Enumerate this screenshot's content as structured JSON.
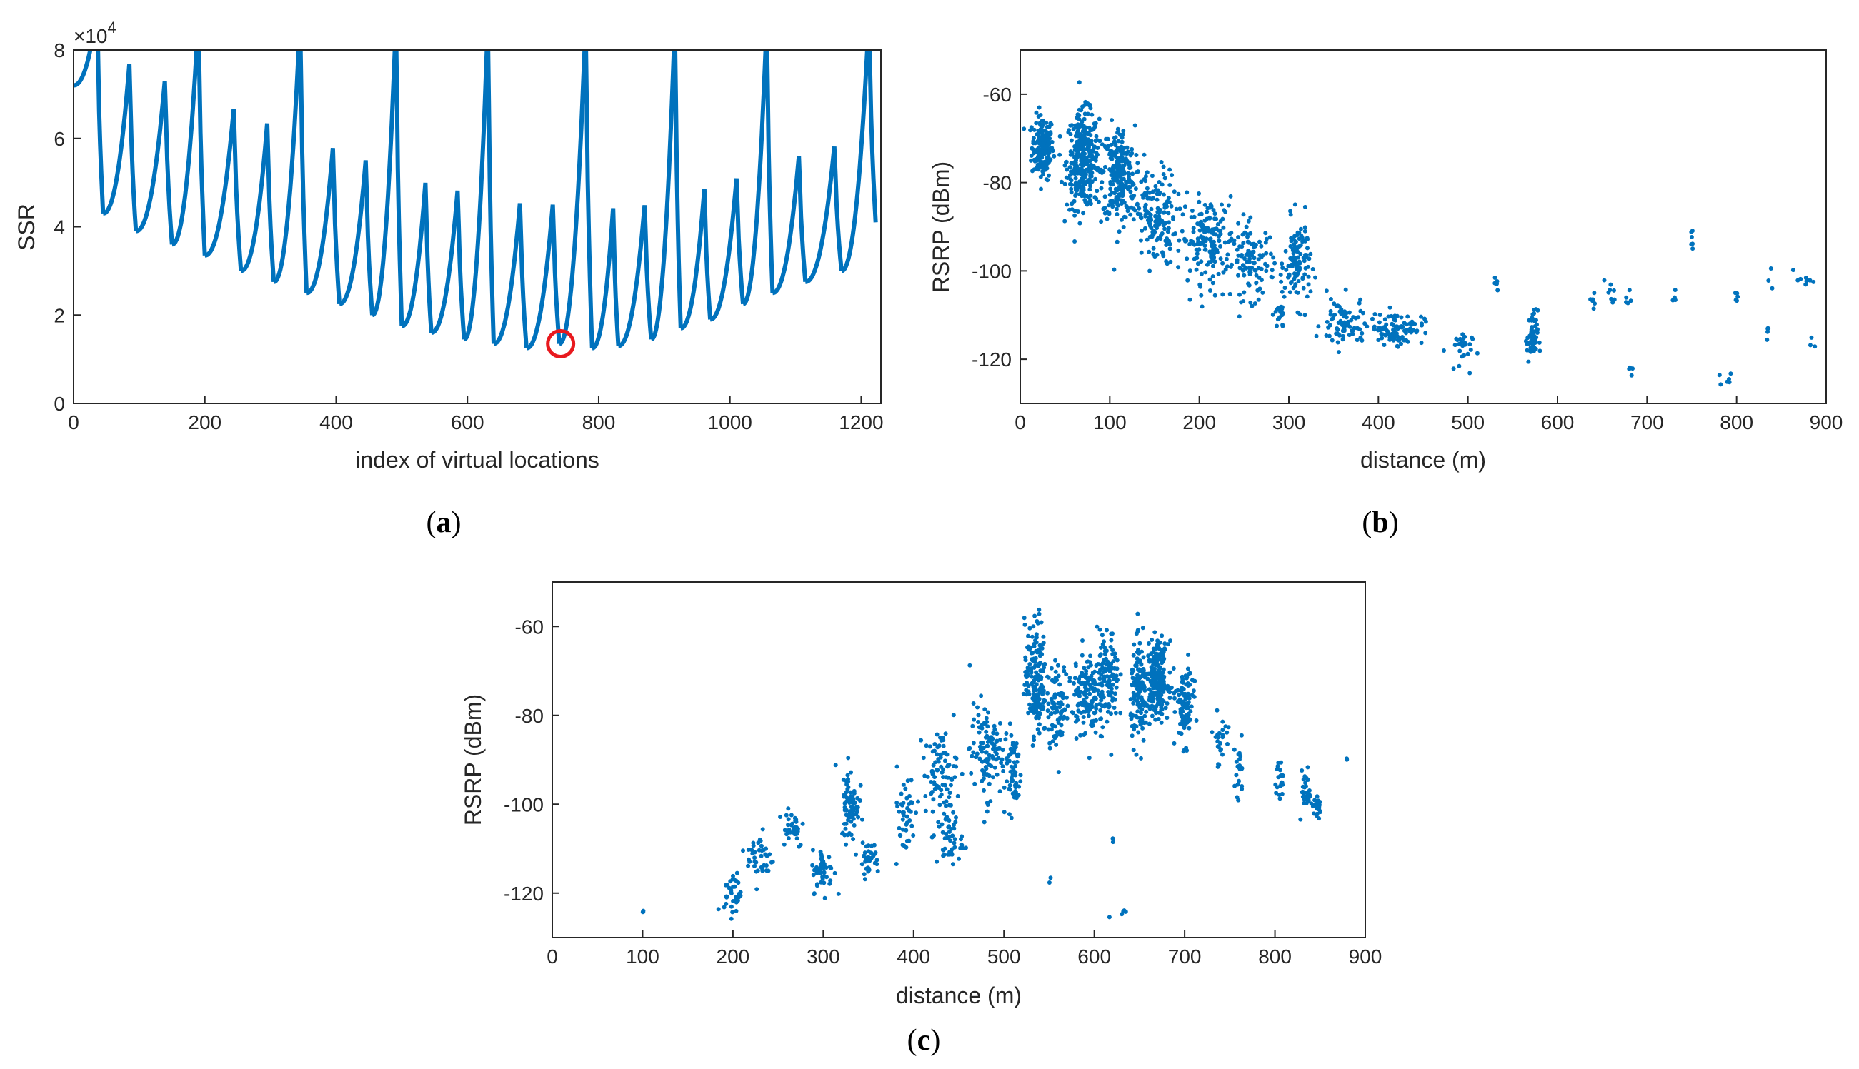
{
  "colors": {
    "series": "#0072BD",
    "marker": "#E8191E",
    "axis": "#262626",
    "background": "#ffffff"
  },
  "chart_data": [
    {
      "id": "a",
      "type": "line",
      "caption_label": "a",
      "xlabel": "index of virtual locations",
      "ylabel": "SSR",
      "exponent_label": "×10",
      "exponent_power": "4",
      "xlim": [
        0,
        1230
      ],
      "ylim": [
        0,
        8
      ],
      "xticks": [
        0,
        200,
        400,
        600,
        800,
        1000,
        1200
      ],
      "yticks": [
        0,
        2,
        4,
        6,
        8
      ],
      "grid": false,
      "series_note_x_step": 1,
      "series": [
        {
          "name": "",
          "segments_min": [
            [
              0,
              72000
            ],
            [
              45,
              43000
            ],
            [
              95,
              39000
            ],
            [
              150,
              36000
            ],
            [
              200,
              33500
            ],
            [
              255,
              30000
            ],
            [
              305,
              27500
            ],
            [
              355,
              25000
            ],
            [
              405,
              22500
            ],
            [
              455,
              20000
            ],
            [
              500,
              17500
            ],
            [
              545,
              16000
            ],
            [
              595,
              14500
            ],
            [
              640,
              13500
            ],
            [
              690,
              12500
            ],
            [
              740,
              13500
            ],
            [
              790,
              12500
            ],
            [
              830,
              13000
            ],
            [
              880,
              14500
            ],
            [
              925,
              17000
            ],
            [
              970,
              19000
            ],
            [
              1020,
              22500
            ],
            [
              1065,
              25000
            ],
            [
              1115,
              27500
            ],
            [
              1170,
              30000
            ],
            [
              1222,
              41000
            ]
          ]
        }
      ],
      "annotation": {
        "type": "circle",
        "x": 742,
        "y": 13500,
        "note": "minimum"
      }
    },
    {
      "id": "b",
      "type": "scatter",
      "caption_label": "b",
      "xlabel": "distance (m)",
      "ylabel": "RSRP (dBm)",
      "xlim": [
        0,
        900
      ],
      "ylim": [
        -130,
        -50
      ],
      "xticks": [
        0,
        100,
        200,
        300,
        400,
        500,
        600,
        700,
        800,
        900
      ],
      "yticks": [
        -120,
        -100,
        -80,
        -60
      ],
      "grid": false,
      "clusters": [
        {
          "x": 25,
          "y": -72,
          "sx": 10,
          "sy": 6,
          "n": 180
        },
        {
          "x": 70,
          "y": -75,
          "sx": 15,
          "sy": 9,
          "n": 330
        },
        {
          "x": 110,
          "y": -78,
          "sx": 15,
          "sy": 9,
          "n": 240
        },
        {
          "x": 150,
          "y": -88,
          "sx": 20,
          "sy": 9,
          "n": 150
        },
        {
          "x": 210,
          "y": -93,
          "sx": 25,
          "sy": 8,
          "n": 160
        },
        {
          "x": 260,
          "y": -98,
          "sx": 20,
          "sy": 7,
          "n": 110
        },
        {
          "x": 310,
          "y": -98,
          "sx": 12,
          "sy": 8,
          "n": 110
        },
        {
          "x": 290,
          "y": -110,
          "sx": 5,
          "sy": 3,
          "n": 25
        },
        {
          "x": 360,
          "y": -112,
          "sx": 20,
          "sy": 5,
          "n": 75
        },
        {
          "x": 420,
          "y": -113,
          "sx": 25,
          "sy": 3,
          "n": 100
        },
        {
          "x": 490,
          "y": -118,
          "sx": 12,
          "sy": 4,
          "n": 25
        },
        {
          "x": 572,
          "y": -115,
          "sx": 5,
          "sy": 5,
          "n": 55
        },
        {
          "x": 530,
          "y": -104,
          "sx": 3,
          "sy": 2,
          "n": 5
        },
        {
          "x": 640,
          "y": -107,
          "sx": 3,
          "sy": 2,
          "n": 6
        },
        {
          "x": 660,
          "y": -105,
          "sx": 5,
          "sy": 3,
          "n": 8
        },
        {
          "x": 680,
          "y": -106,
          "sx": 5,
          "sy": 2,
          "n": 5
        },
        {
          "x": 680,
          "y": -122,
          "sx": 3,
          "sy": 2,
          "n": 4
        },
        {
          "x": 750,
          "y": -95,
          "sx": 2,
          "sy": 4,
          "n": 6
        },
        {
          "x": 730,
          "y": -106,
          "sx": 3,
          "sy": 2,
          "n": 4
        },
        {
          "x": 790,
          "y": -124,
          "sx": 8,
          "sy": 2,
          "n": 6
        },
        {
          "x": 800,
          "y": -106,
          "sx": 3,
          "sy": 2,
          "n": 5
        },
        {
          "x": 835,
          "y": -113,
          "sx": 3,
          "sy": 2,
          "n": 5
        },
        {
          "x": 840,
          "y": -102,
          "sx": 3,
          "sy": 2,
          "n": 3
        },
        {
          "x": 875,
          "y": -102,
          "sx": 8,
          "sy": 2,
          "n": 10
        },
        {
          "x": 885,
          "y": -116,
          "sx": 3,
          "sy": 1,
          "n": 3
        }
      ]
    },
    {
      "id": "c",
      "type": "scatter",
      "caption_label": "c",
      "xlabel": "distance (m)",
      "ylabel": "RSRP (dBm)",
      "xlim": [
        0,
        900
      ],
      "ylim": [
        -130,
        -50
      ],
      "xticks": [
        0,
        100,
        200,
        300,
        400,
        500,
        600,
        700,
        800,
        900
      ],
      "yticks": [
        -120,
        -100,
        -80,
        -60
      ],
      "grid": false,
      "clusters": [
        {
          "x": 100,
          "y": -124,
          "sx": 1,
          "sy": 1,
          "n": 3
        },
        {
          "x": 200,
          "y": -120,
          "sx": 8,
          "sy": 4,
          "n": 35
        },
        {
          "x": 230,
          "y": -112,
          "sx": 12,
          "sy": 5,
          "n": 40
        },
        {
          "x": 265,
          "y": -105,
          "sx": 12,
          "sy": 4,
          "n": 35
        },
        {
          "x": 300,
          "y": -115,
          "sx": 10,
          "sy": 4,
          "n": 50
        },
        {
          "x": 330,
          "y": -100,
          "sx": 8,
          "sy": 7,
          "n": 80
        },
        {
          "x": 350,
          "y": -112,
          "sx": 10,
          "sy": 3,
          "n": 35
        },
        {
          "x": 390,
          "y": -102,
          "sx": 10,
          "sy": 8,
          "n": 45
        },
        {
          "x": 430,
          "y": -93,
          "sx": 15,
          "sy": 8,
          "n": 90
        },
        {
          "x": 440,
          "y": -108,
          "sx": 12,
          "sy": 5,
          "n": 50
        },
        {
          "x": 480,
          "y": -88,
          "sx": 15,
          "sy": 9,
          "n": 110
        },
        {
          "x": 510,
          "y": -92,
          "sx": 8,
          "sy": 8,
          "n": 60
        },
        {
          "x": 535,
          "y": -72,
          "sx": 10,
          "sy": 11,
          "n": 170
        },
        {
          "x": 560,
          "y": -78,
          "sx": 10,
          "sy": 8,
          "n": 80
        },
        {
          "x": 590,
          "y": -75,
          "sx": 12,
          "sy": 8,
          "n": 140
        },
        {
          "x": 615,
          "y": -72,
          "sx": 10,
          "sy": 9,
          "n": 120
        },
        {
          "x": 650,
          "y": -75,
          "sx": 8,
          "sy": 9,
          "n": 130
        },
        {
          "x": 670,
          "y": -72,
          "sx": 10,
          "sy": 7,
          "n": 220
        },
        {
          "x": 700,
          "y": -78,
          "sx": 8,
          "sy": 7,
          "n": 100
        },
        {
          "x": 740,
          "y": -85,
          "sx": 10,
          "sy": 6,
          "n": 25
        },
        {
          "x": 760,
          "y": -93,
          "sx": 5,
          "sy": 6,
          "n": 20
        },
        {
          "x": 805,
          "y": -95,
          "sx": 4,
          "sy": 4,
          "n": 20
        },
        {
          "x": 835,
          "y": -97,
          "sx": 5,
          "sy": 4,
          "n": 35
        },
        {
          "x": 848,
          "y": -101,
          "sx": 3,
          "sy": 2,
          "n": 20
        },
        {
          "x": 880,
          "y": -90,
          "sx": 1,
          "sy": 1,
          "n": 2
        },
        {
          "x": 630,
          "y": -124,
          "sx": 8,
          "sy": 2,
          "n": 6
        },
        {
          "x": 550,
          "y": -117,
          "sx": 2,
          "sy": 1,
          "n": 2
        },
        {
          "x": 620,
          "y": -108,
          "sx": 2,
          "sy": 1,
          "n": 2
        }
      ]
    }
  ]
}
